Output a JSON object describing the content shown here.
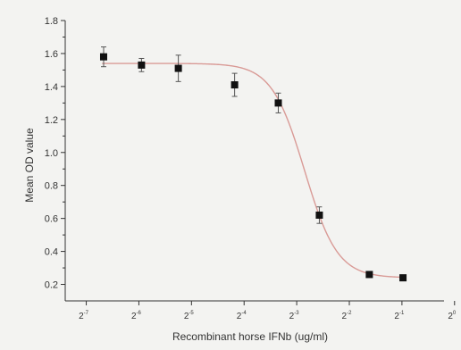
{
  "chart_data": {
    "type": "scatter",
    "title": "",
    "xlabel": "Recombinant horse IFNb (ug/ml)",
    "ylabel": "Mean OD value",
    "x_scale": "log2",
    "x_ticks": [
      {
        "value": -7,
        "base": "2",
        "exponent": "-7"
      },
      {
        "value": -6,
        "base": "2",
        "exponent": "-6"
      },
      {
        "value": -5,
        "base": "2",
        "exponent": "-5"
      },
      {
        "value": -4,
        "base": "2",
        "exponent": "-4"
      },
      {
        "value": -3,
        "base": "2",
        "exponent": "-3"
      },
      {
        "value": -2,
        "base": "2",
        "exponent": "-2"
      },
      {
        "value": -1,
        "base": "2",
        "exponent": "-1"
      },
      {
        "value": 0,
        "base": "2",
        "exponent": "0"
      }
    ],
    "xlim": [
      -7.4,
      -0.2
    ],
    "ylim": [
      0.1,
      1.8
    ],
    "y_ticks": [
      "0.2",
      "0.4",
      "0.6",
      "0.8",
      "1.0",
      "1.2",
      "1.4",
      "1.6",
      "1.8"
    ],
    "series": [
      {
        "points": [
          {
            "x": -6.67,
            "y": 1.58,
            "err": 0.06
          },
          {
            "x": -5.95,
            "y": 1.53,
            "err": 0.04
          },
          {
            "x": -5.25,
            "y": 1.51,
            "err": 0.08
          },
          {
            "x": -4.18,
            "y": 1.41,
            "err": 0.07
          },
          {
            "x": -3.35,
            "y": 1.3,
            "err": 0.06
          },
          {
            "x": -2.57,
            "y": 0.62,
            "err": 0.05
          },
          {
            "x": -1.62,
            "y": 0.26,
            "err": 0.01
          },
          {
            "x": -0.98,
            "y": 0.24,
            "err": 0.01
          }
        ]
      }
    ],
    "fit_curve": {
      "type": "sigmoidal",
      "color": "#d99a96",
      "top": 1.54,
      "bottom": 0.24,
      "midpoint_log2": -2.85,
      "slope": 3.2
    },
    "marker_color": "#111111",
    "axis_color": "#333333",
    "grid": false,
    "legend": "none"
  }
}
